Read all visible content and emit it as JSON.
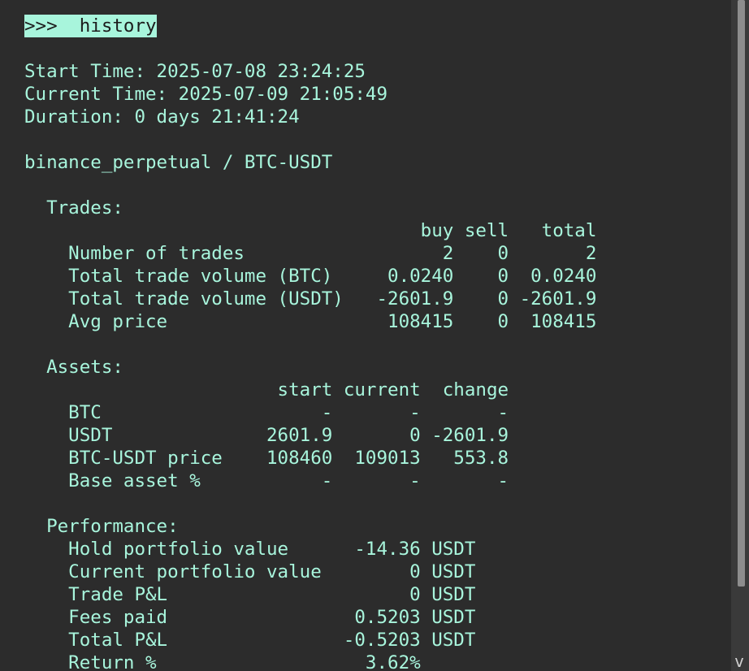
{
  "prompt": ">>>  history",
  "lines": [
    "",
    "Start Time: 2025-07-08 23:24:25",
    "Current Time: 2025-07-09 21:05:49",
    "Duration: 0 days 21:41:24",
    "",
    "binance_perpetual / BTC-USDT",
    "",
    "  Trades:",
    "                                    buy sell   total",
    "    Number of trades                  2    0       2",
    "    Total trade volume (BTC)     0.0240    0  0.0240",
    "    Total trade volume (USDT)   -2601.9    0 -2601.9",
    "    Avg price                    108415    0  108415",
    "",
    "  Assets:",
    "                       start current  change",
    "    BTC                    -       -       -",
    "    USDT              2601.9       0 -2601.9",
    "    BTC-USDT price    108460  109013   553.8",
    "    Base asset %           -       -       -",
    "",
    "  Performance:",
    "    Hold portfolio value      -14.36 USDT",
    "    Current portfolio value        0 USDT",
    "    Trade P&L                      0 USDT",
    "    Fees paid                 0.5203 USDT",
    "    Total P&L                -0.5203 USDT",
    "    Return %                   3.62%"
  ],
  "scroll_arrow": "v",
  "colors": {
    "background": "#2c2c2c",
    "text": "#a8f5dc",
    "prompt_bg": "#a8f5dc",
    "prompt_fg": "#1c1c1c"
  }
}
